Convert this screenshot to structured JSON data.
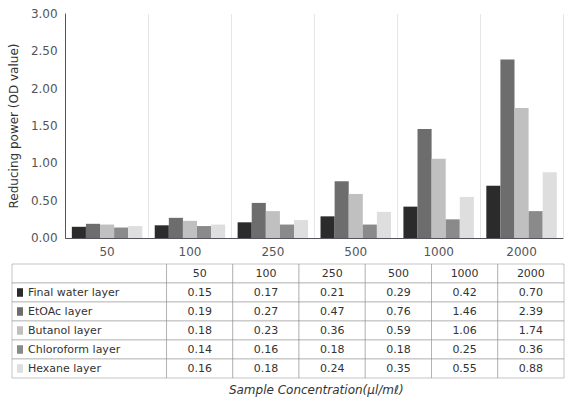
{
  "chart_data": {
    "type": "bar",
    "categories": [
      "50",
      "100",
      "250",
      "500",
      "1000",
      "2000"
    ],
    "series": [
      {
        "name": "Final water layer",
        "color": "#2b2b2b",
        "values": [
          0.15,
          0.17,
          0.21,
          0.29,
          0.42,
          0.7
        ],
        "value_labels": [
          "0.15",
          "0.17",
          "0.21",
          "0.29",
          "0.42",
          "0.70"
        ]
      },
      {
        "name": "EtOAc layer",
        "color": "#6d6d6d",
        "values": [
          0.19,
          0.27,
          0.47,
          0.76,
          1.46,
          2.39
        ],
        "value_labels": [
          "0.19",
          "0.27",
          "0.47",
          "0.76",
          "1.46",
          "2.39"
        ]
      },
      {
        "name": "Butanol layer",
        "color": "#c0c0c0",
        "values": [
          0.18,
          0.23,
          0.36,
          0.59,
          1.06,
          1.74
        ],
        "value_labels": [
          "0.18",
          "0.23",
          "0.36",
          "0.59",
          "1.06",
          "1.74"
        ]
      },
      {
        "name": "Chloroform layer",
        "color": "#8a8a8a",
        "values": [
          0.14,
          0.16,
          0.18,
          0.18,
          0.25,
          0.36
        ],
        "value_labels": [
          "0.14",
          "0.16",
          "0.18",
          "0.18",
          "0.25",
          "0.36"
        ]
      },
      {
        "name": "Hexane layer",
        "color": "#dedede",
        "values": [
          0.16,
          0.18,
          0.24,
          0.35,
          0.55,
          0.88
        ],
        "value_labels": [
          "0.16",
          "0.18",
          "0.24",
          "0.35",
          "0.55",
          "0.88"
        ]
      }
    ],
    "ylabel": "Reducing power (OD value)",
    "xlabel": "Sample Concentration(μl/mℓ)",
    "ylim": [
      0.0,
      3.0
    ],
    "yticks": [
      {
        "value": 0,
        "label": "0.00"
      },
      {
        "value": 0.5,
        "label": "0.50"
      },
      {
        "value": 1,
        "label": "1.00"
      },
      {
        "value": 1.5,
        "label": "1.50"
      },
      {
        "value": 2,
        "label": "2.00"
      },
      {
        "value": 2.5,
        "label": "2.50"
      },
      {
        "value": 3,
        "label": "3.00"
      }
    ],
    "grid": true
  }
}
